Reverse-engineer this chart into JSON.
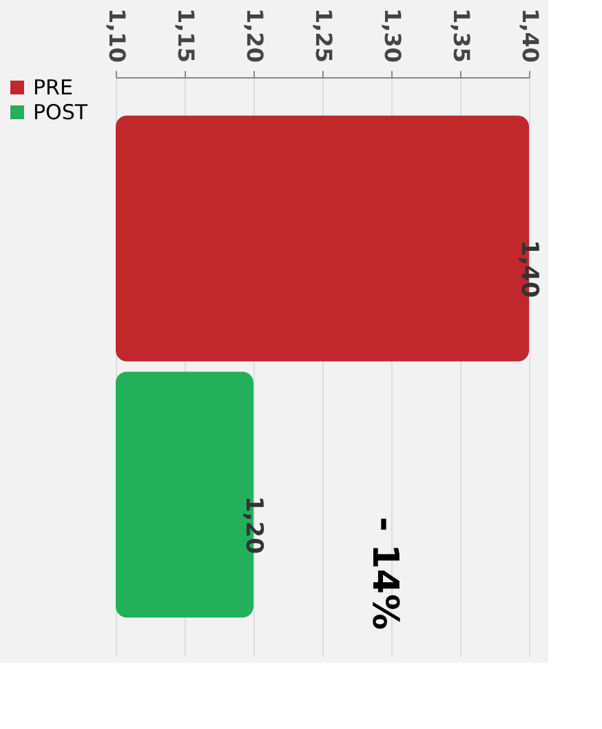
{
  "chart_data": {
    "type": "bar",
    "orientation": "horizontal",
    "categories": [
      null,
      null
    ],
    "series": [
      {
        "name": "PRE",
        "color": "#c0282d",
        "values": [
          1.4,
          null
        ]
      },
      {
        "name": "POST",
        "color": "#22b05a",
        "values": [
          null,
          1.2
        ]
      }
    ],
    "value_labels": [
      "1,40",
      "1,20"
    ],
    "xlim": [
      1.1,
      1.4
    ],
    "xticks": [
      {
        "value": 1.1,
        "label": "1,10"
      },
      {
        "value": 1.15,
        "label": "1,15"
      },
      {
        "value": 1.2,
        "label": "1,20"
      },
      {
        "value": 1.25,
        "label": "1,25"
      },
      {
        "value": 1.3,
        "label": "1,30"
      },
      {
        "value": 1.35,
        "label": "1,35"
      },
      {
        "value": 1.4,
        "label": "1,40"
      }
    ],
    "annotations": [
      "- 14%"
    ],
    "grid": "x",
    "legend": "left"
  }
}
